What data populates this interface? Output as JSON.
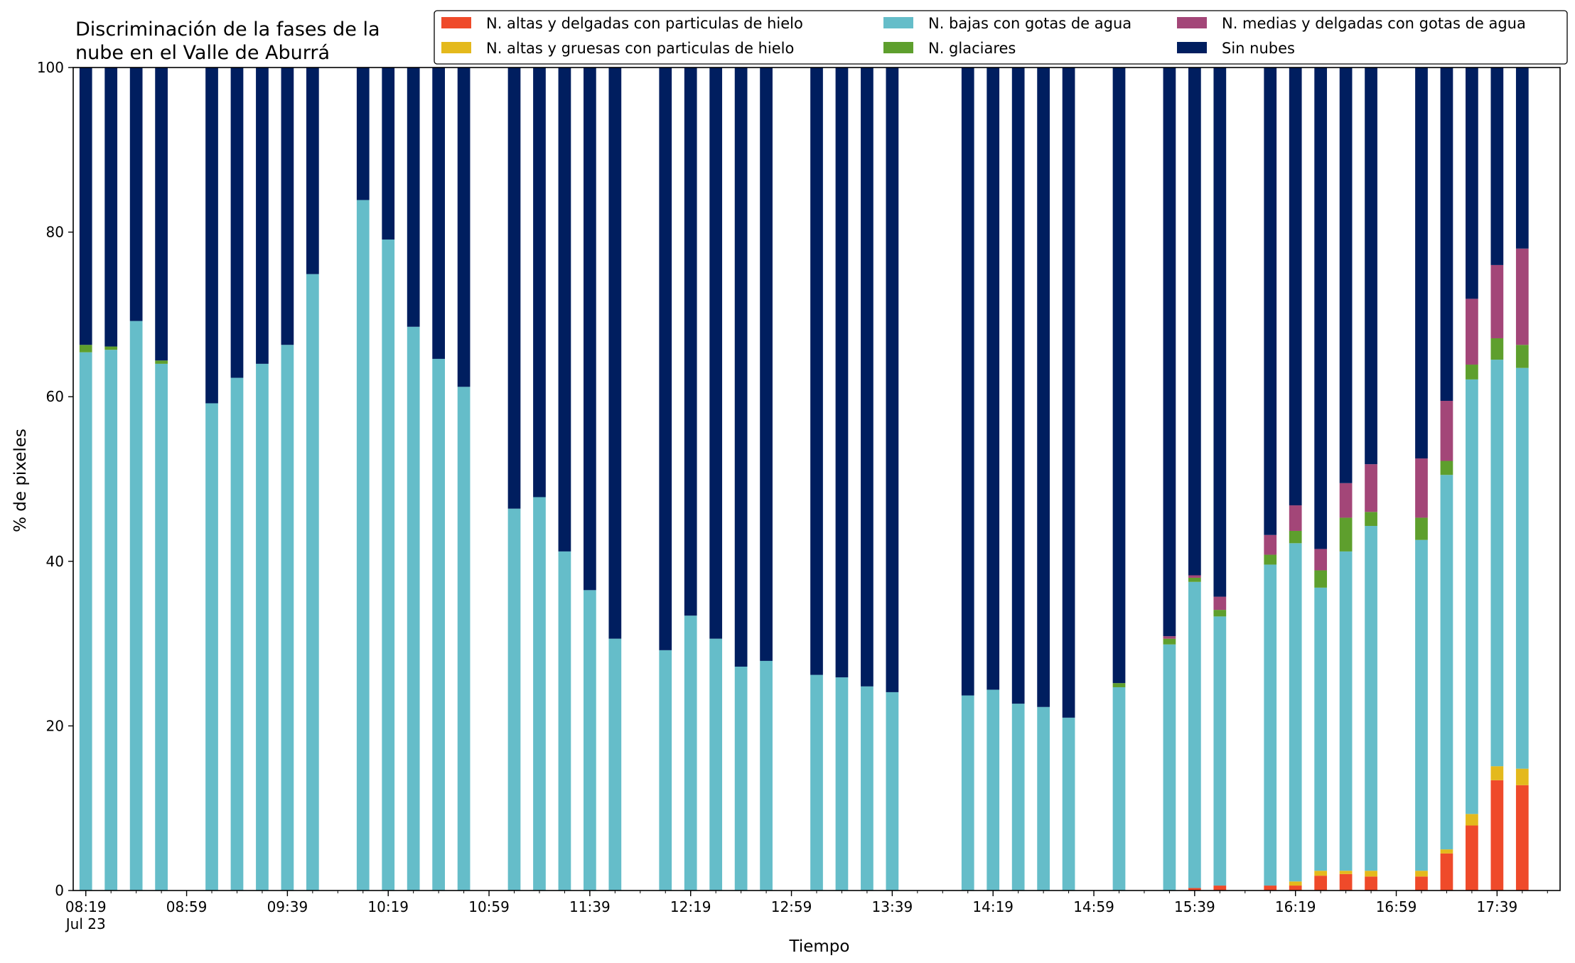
{
  "chart_data": {
    "type": "bar",
    "stacked": true,
    "title": "Discriminación de la fases de la nube en el Valle de Aburrá",
    "title_lines": [
      "Discriminación de la fases de la",
      "nube en el Valle de Aburrá"
    ],
    "xlabel": "Tiempo",
    "ylabel": "% de pixeles",
    "ylim": [
      0,
      100
    ],
    "yticks": [
      0,
      20,
      40,
      60,
      80,
      100
    ],
    "xlim_slots": [
      -0.5,
      58.5
    ],
    "x_start": "08:19",
    "x_interval_minutes": 10,
    "xtick_labels": [
      {
        "slot": 0,
        "label": "08:19",
        "sublabel": "Jul 23"
      },
      {
        "slot": 4,
        "label": "08:59"
      },
      {
        "slot": 8,
        "label": "09:39"
      },
      {
        "slot": 12,
        "label": "10:19"
      },
      {
        "slot": 16,
        "label": "10:59"
      },
      {
        "slot": 20,
        "label": "11:39"
      },
      {
        "slot": 24,
        "label": "12:19"
      },
      {
        "slot": 28,
        "label": "12:59"
      },
      {
        "slot": 32,
        "label": "13:39"
      },
      {
        "slot": 36,
        "label": "14:19"
      },
      {
        "slot": 40,
        "label": "14:59"
      },
      {
        "slot": 44,
        "label": "15:39"
      },
      {
        "slot": 48,
        "label": "16:19"
      },
      {
        "slot": 52,
        "label": "16:59"
      },
      {
        "slot": 56,
        "label": "17:39"
      }
    ],
    "legend_location": "upper-right",
    "legend": [
      {
        "name": "N. altas y delgadas con particulas de hielo",
        "color": "#ef4a2a"
      },
      {
        "name": "N. altas y gruesas con particulas de hielo",
        "color": "#e4b91c"
      },
      {
        "name": "N. bajas con gotas de agua",
        "color": "#65bdc9"
      },
      {
        "name": "N. glaciares",
        "color": "#5e9f2d"
      },
      {
        "name": "N. medias y delgadas con gotas de agua",
        "color": "#a34678"
      },
      {
        "name": "Sin nubes",
        "color": "#001e5f"
      }
    ],
    "series_order": [
      "alta_delgada",
      "alta_gruesa",
      "baja_agua",
      "glaciar",
      "media_delgada",
      "sin_nubes"
    ],
    "bars": [
      {
        "slot": 0,
        "values": [
          0,
          0,
          65.4,
          0.9,
          0,
          33.7
        ]
      },
      {
        "slot": 1,
        "values": [
          0,
          0,
          65.7,
          0.4,
          0,
          33.9
        ]
      },
      {
        "slot": 2,
        "values": [
          0,
          0,
          69.2,
          0,
          0,
          30.8
        ]
      },
      {
        "slot": 3,
        "values": [
          0,
          0,
          64.0,
          0.4,
          0,
          35.6
        ]
      },
      {
        "slot": 5,
        "values": [
          0,
          0,
          59.2,
          0,
          0,
          40.8
        ]
      },
      {
        "slot": 6,
        "values": [
          0,
          0,
          62.3,
          0,
          0,
          37.7
        ]
      },
      {
        "slot": 7,
        "values": [
          0,
          0,
          64.0,
          0,
          0,
          36.0
        ]
      },
      {
        "slot": 8,
        "values": [
          0,
          0,
          66.3,
          0,
          0,
          33.7
        ]
      },
      {
        "slot": 9,
        "values": [
          0,
          0,
          74.9,
          0,
          0,
          25.1
        ]
      },
      {
        "slot": 11,
        "values": [
          0,
          0,
          83.9,
          0,
          0,
          16.1
        ]
      },
      {
        "slot": 12,
        "values": [
          0,
          0,
          79.1,
          0,
          0,
          20.9
        ]
      },
      {
        "slot": 13,
        "values": [
          0,
          0,
          68.5,
          0,
          0,
          31.5
        ]
      },
      {
        "slot": 14,
        "values": [
          0,
          0,
          64.6,
          0,
          0,
          35.4
        ]
      },
      {
        "slot": 15,
        "values": [
          0,
          0,
          61.2,
          0,
          0,
          38.8
        ]
      },
      {
        "slot": 17,
        "values": [
          0,
          0,
          46.4,
          0,
          0,
          53.6
        ]
      },
      {
        "slot": 18,
        "values": [
          0,
          0,
          47.8,
          0,
          0,
          52.2
        ]
      },
      {
        "slot": 19,
        "values": [
          0,
          0,
          41.2,
          0,
          0,
          58.8
        ]
      },
      {
        "slot": 20,
        "values": [
          0,
          0,
          36.5,
          0,
          0,
          63.5
        ]
      },
      {
        "slot": 21,
        "values": [
          0,
          0,
          30.6,
          0,
          0,
          69.4
        ]
      },
      {
        "slot": 23,
        "values": [
          0,
          0,
          29.2,
          0,
          0,
          70.8
        ]
      },
      {
        "slot": 24,
        "values": [
          0,
          0,
          33.4,
          0,
          0,
          66.6
        ]
      },
      {
        "slot": 25,
        "values": [
          0,
          0,
          30.6,
          0,
          0,
          69.4
        ]
      },
      {
        "slot": 26,
        "values": [
          0,
          0,
          27.2,
          0,
          0,
          72.8
        ]
      },
      {
        "slot": 27,
        "values": [
          0,
          0,
          27.9,
          0,
          0,
          72.1
        ]
      },
      {
        "slot": 29,
        "values": [
          0,
          0,
          26.2,
          0,
          0,
          73.8
        ]
      },
      {
        "slot": 30,
        "values": [
          0,
          0,
          25.9,
          0,
          0,
          74.1
        ]
      },
      {
        "slot": 31,
        "values": [
          0,
          0,
          24.8,
          0,
          0,
          75.2
        ]
      },
      {
        "slot": 32,
        "values": [
          0,
          0,
          24.1,
          0,
          0,
          75.9
        ]
      },
      {
        "slot": 35,
        "values": [
          0,
          0,
          23.7,
          0,
          0,
          76.3
        ]
      },
      {
        "slot": 36,
        "values": [
          0,
          0,
          24.4,
          0,
          0,
          75.6
        ]
      },
      {
        "slot": 37,
        "values": [
          0,
          0,
          22.7,
          0,
          0,
          77.3
        ]
      },
      {
        "slot": 38,
        "values": [
          0,
          0,
          22.3,
          0,
          0,
          77.7
        ]
      },
      {
        "slot": 39,
        "values": [
          0,
          0,
          21.0,
          0,
          0,
          79.0
        ]
      },
      {
        "slot": 41,
        "values": [
          0,
          0,
          24.7,
          0.5,
          0,
          74.8
        ]
      },
      {
        "slot": 43,
        "values": [
          0,
          0,
          29.9,
          0.7,
          0.3,
          69.1
        ]
      },
      {
        "slot": 44,
        "values": [
          0.3,
          0,
          37.2,
          0.5,
          0.3,
          61.7
        ]
      },
      {
        "slot": 45,
        "values": [
          0.6,
          0,
          32.7,
          0.8,
          1.6,
          64.3
        ]
      },
      {
        "slot": 47,
        "values": [
          0.6,
          0,
          39.0,
          1.2,
          2.4,
          56.8
        ]
      },
      {
        "slot": 48,
        "values": [
          0.6,
          0.5,
          41.1,
          1.5,
          3.1,
          53.2
        ]
      },
      {
        "slot": 49,
        "values": [
          1.8,
          0.6,
          34.4,
          2.1,
          2.6,
          58.5
        ]
      },
      {
        "slot": 50,
        "values": [
          2.0,
          0.4,
          38.8,
          4.1,
          4.2,
          50.5
        ]
      },
      {
        "slot": 51,
        "values": [
          1.7,
          0.7,
          41.9,
          1.7,
          5.8,
          48.2
        ]
      },
      {
        "slot": 53,
        "values": [
          1.7,
          0.7,
          40.2,
          2.7,
          7.2,
          47.5
        ]
      },
      {
        "slot": 54,
        "values": [
          4.5,
          0.5,
          45.5,
          1.7,
          7.3,
          40.5
        ]
      },
      {
        "slot": 55,
        "values": [
          7.9,
          1.4,
          52.8,
          1.8,
          8.0,
          28.1
        ]
      },
      {
        "slot": 56,
        "values": [
          13.4,
          1.7,
          49.4,
          2.6,
          8.9,
          24.0
        ]
      },
      {
        "slot": 57,
        "values": [
          12.8,
          2.0,
          48.7,
          2.8,
          11.7,
          22.0
        ]
      }
    ]
  }
}
